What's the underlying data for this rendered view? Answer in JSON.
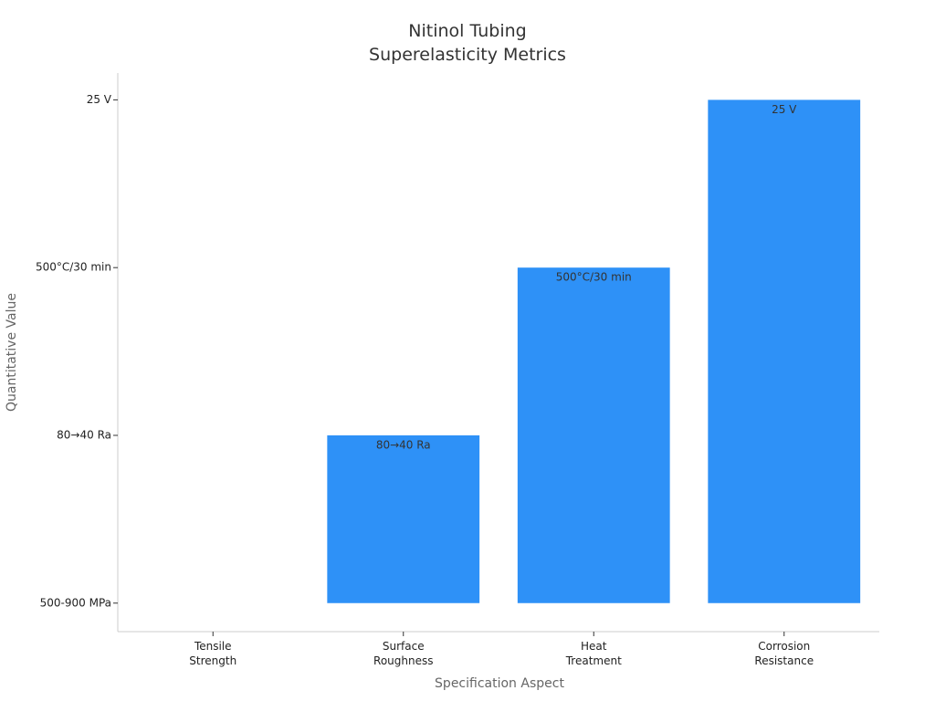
{
  "chart_data": {
    "type": "bar",
    "title": "Nitinol Tubing\nSuperelasticity Metrics",
    "x_label": "Specification Aspect",
    "y_label": "Quantitative Value",
    "categories": [
      "Tensile\nStrength",
      "Surface\nRoughness",
      "Heat\nTreatment",
      "Corrosion\nResistance"
    ],
    "values": [
      0,
      1,
      2,
      3
    ],
    "value_labels": [
      null,
      "80→40 Ra",
      "500°C/30 min",
      "25 V"
    ],
    "color": "#2e91f7",
    "ylim": [
      -0.17,
      3.16
    ],
    "yticks": [
      {
        "value": 0,
        "label": "500-900 MPa"
      },
      {
        "value": 1,
        "label": "80→40 Ra"
      },
      {
        "value": 2,
        "label": "500°C/30 min"
      },
      {
        "value": 3,
        "label": "25 V"
      }
    ],
    "grid": false
  }
}
